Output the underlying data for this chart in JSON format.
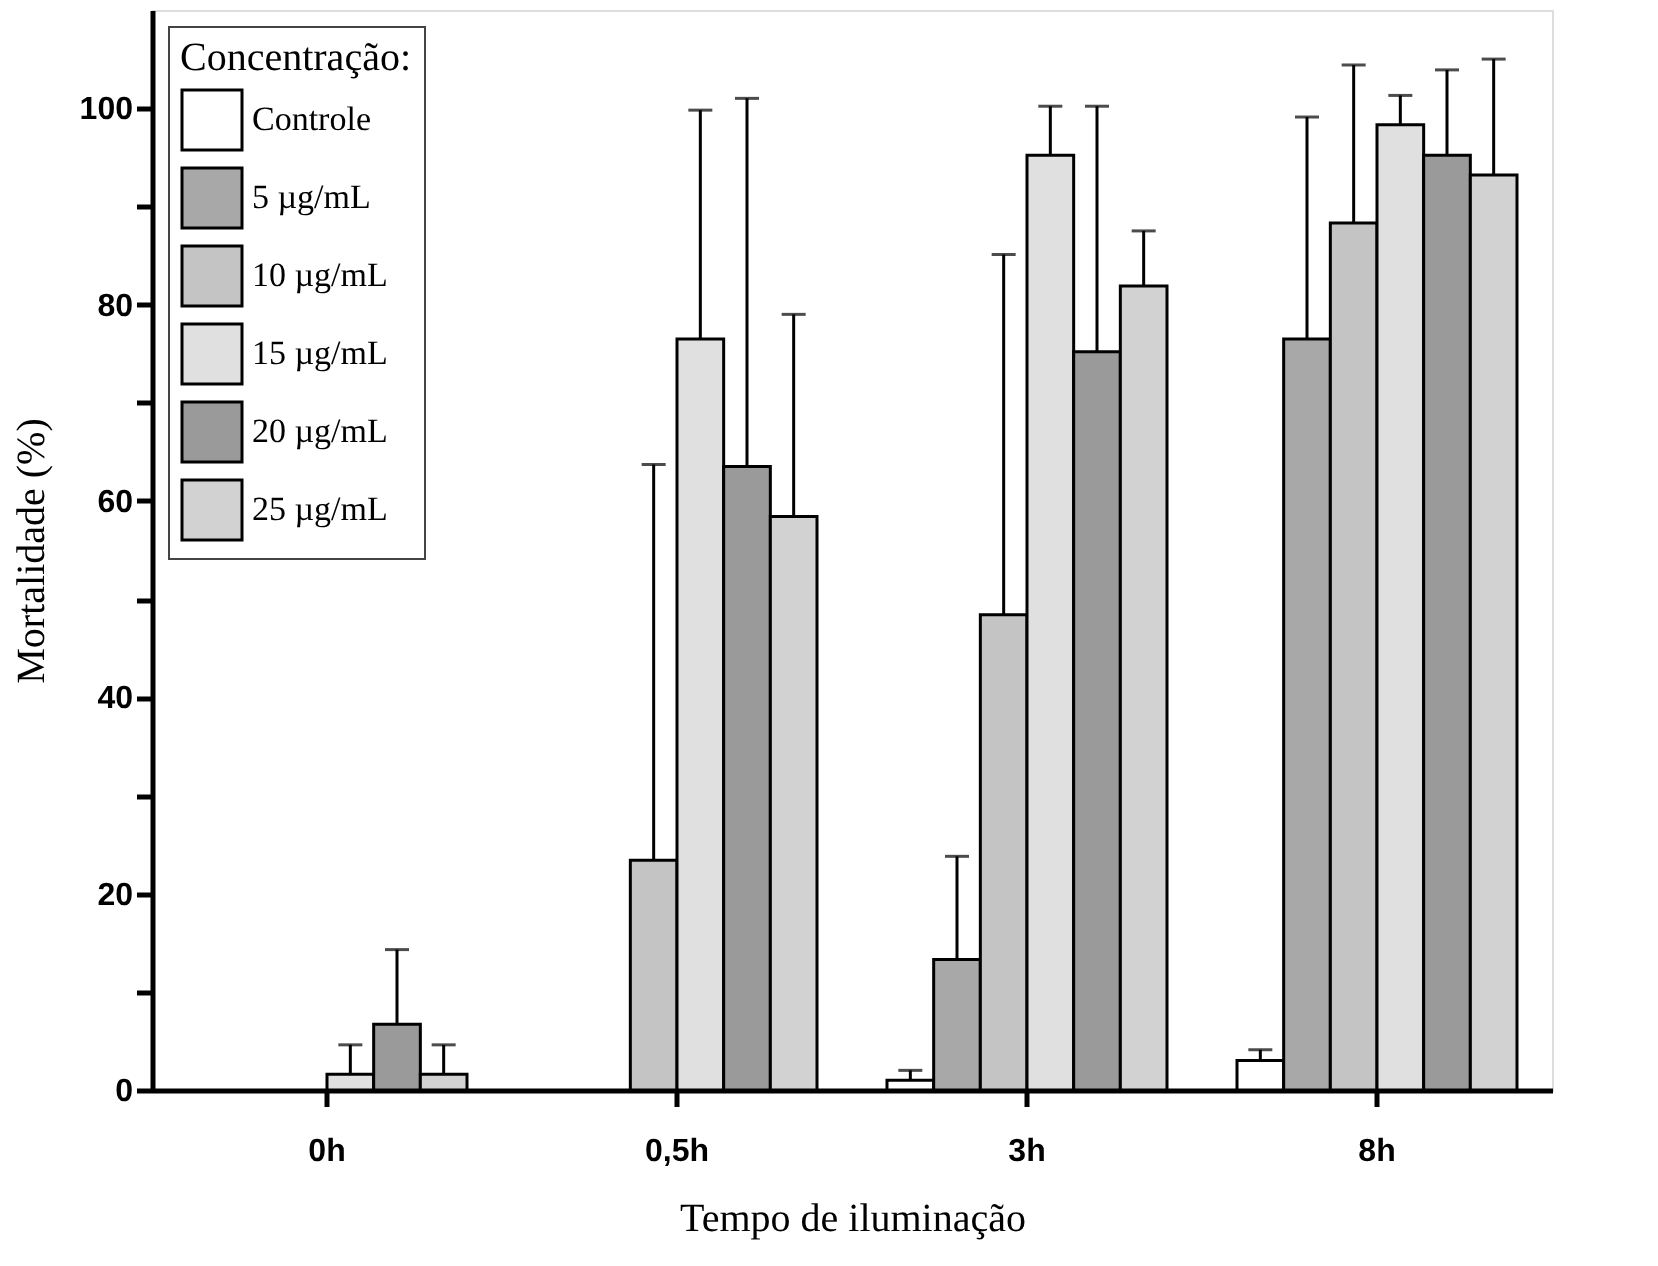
{
  "chart_data": {
    "type": "bar",
    "xlabel": "Tempo de iluminação",
    "ylabel": "Mortalidade (%)",
    "legend_title": "Concentração:",
    "categories": [
      "0h",
      "0,5h",
      "3h",
      "8h"
    ],
    "series": [
      {
        "name": "Controle",
        "color": "#ffffff",
        "values": [
          null,
          null,
          1.0,
          3.0
        ],
        "errors": [
          null,
          null,
          [
            1.0,
            2.0
          ],
          [
            3.0,
            4.1
          ]
        ]
      },
      {
        "name": "5 µg/mL",
        "color": "#a8a8a8",
        "values": [
          null,
          null,
          13.3,
          76.5
        ],
        "errors": [
          null,
          null,
          [
            13.3,
            23.8
          ],
          [
            76.5,
            99.1
          ]
        ]
      },
      {
        "name": "10 µg/mL",
        "color": "#c4c4c4",
        "values": [
          null,
          23.4,
          48.4,
          88.3
        ],
        "errors": [
          null,
          [
            23.4,
            63.7
          ],
          [
            48.4,
            85.1
          ],
          [
            88.3,
            104.4
          ]
        ]
      },
      {
        "name": "15 µg/mL",
        "color": "#e0e0e0",
        "values": [
          1.6,
          76.5,
          95.2,
          98.3
        ],
        "errors": [
          [
            1.6,
            4.6
          ],
          [
            76.5,
            99.8
          ],
          [
            95.2,
            100.2
          ],
          [
            98.3,
            101.3
          ]
        ]
      },
      {
        "name": "20 µg/mL",
        "color": "#9a9a9a",
        "values": [
          6.7,
          63.5,
          75.2,
          95.2
        ],
        "errors": [
          [
            6.7,
            14.3
          ],
          [
            63.5,
            101.0
          ],
          [
            75.2,
            100.2
          ],
          [
            95.2,
            103.9
          ]
        ]
      },
      {
        "name": "25  µg/mL",
        "color": "#d2d2d2",
        "values": [
          1.6,
          58.4,
          81.9,
          93.2
        ],
        "errors": [
          [
            1.6,
            4.6
          ],
          [
            58.4,
            79.0
          ],
          [
            81.9,
            87.5
          ],
          [
            93.2,
            105.0
          ]
        ]
      }
    ],
    "ylim": [
      0,
      110
    ],
    "yticks": [
      0,
      {
        "value": 10,
        "label": null
      },
      20,
      {
        "value": 30,
        "label": null
      },
      40,
      {
        "value": 50,
        "label": null
      },
      60,
      {
        "value": 70,
        "label": null
      },
      80,
      {
        "value": 90,
        "label": null
      },
      100
    ],
    "legend": "top left",
    "grid": false
  }
}
